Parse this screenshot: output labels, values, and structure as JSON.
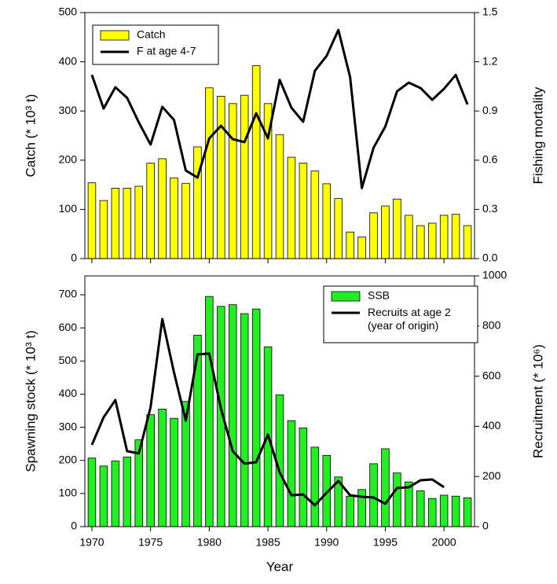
{
  "chart_data": [
    {
      "type": "bar_line",
      "ylabel": "Catch (* 10³ t)",
      "y2label": "Fishing mortality",
      "x": [
        1970,
        1971,
        1972,
        1973,
        1974,
        1975,
        1976,
        1977,
        1978,
        1979,
        1980,
        1981,
        1982,
        1983,
        1984,
        1985,
        1986,
        1987,
        1988,
        1989,
        1990,
        1991,
        1992,
        1993,
        1994,
        1995,
        1996,
        1997,
        1998,
        1999,
        2000,
        2001,
        2002
      ],
      "xlim": [
        1969.4,
        2002.6
      ],
      "ylim": [
        0,
        500
      ],
      "yticks": [
        0,
        100,
        200,
        300,
        400,
        500
      ],
      "y2lim": [
        0,
        1.5
      ],
      "y2ticks": [
        {
          "value": 0,
          "label": "0.0"
        },
        0.3,
        0.6,
        0.9,
        1.2,
        1.5
      ],
      "series": [
        {
          "name": "Catch",
          "kind": "bar",
          "color": "#ffff00",
          "values": [
            154,
            118,
            143,
            143,
            147,
            194,
            203,
            164,
            153,
            227,
            347,
            330,
            315,
            332,
            392,
            315,
            252,
            206,
            194,
            178,
            152,
            122,
            54,
            44,
            93,
            107,
            121,
            88,
            67,
            72,
            88,
            90,
            67
          ]
        },
        {
          "name": "F at age 4-7",
          "kind": "line",
          "axis": "y2",
          "color": "#000000",
          "values": [
            1.12,
            0.915,
            1.045,
            0.98,
            0.83,
            0.695,
            0.925,
            0.845,
            0.537,
            0.494,
            0.733,
            0.81,
            0.728,
            0.71,
            0.886,
            0.733,
            1.09,
            0.92,
            0.834,
            1.145,
            1.236,
            1.394,
            1.107,
            0.43,
            0.676,
            0.805,
            1.02,
            1.073,
            1.04,
            0.968,
            1.035,
            1.12,
            0.94
          ]
        }
      ]
    },
    {
      "type": "bar_line",
      "ylabel": "Spawning stock (* 10³ t)",
      "y2label": "Recruitment (* 10⁶)",
      "xlabel": "Year",
      "x": [
        1970,
        1971,
        1972,
        1973,
        1974,
        1975,
        1976,
        1977,
        1978,
        1979,
        1980,
        1981,
        1982,
        1983,
        1984,
        1985,
        1986,
        1987,
        1988,
        1989,
        1990,
        1991,
        1992,
        1993,
        1994,
        1995,
        1996,
        1997,
        1998,
        1999,
        2000,
        2001,
        2002
      ],
      "xlim": [
        1969.4,
        2002.6
      ],
      "xticks": [
        1970,
        1975,
        1980,
        1985,
        1990,
        1995,
        2000
      ],
      "ylim": [
        0,
        757
      ],
      "yticks": [
        0,
        100,
        200,
        300,
        400,
        500,
        600,
        700
      ],
      "y2lim": [
        0,
        1000
      ],
      "y2ticks": [
        0,
        200,
        400,
        600,
        800,
        1000
      ],
      "series": [
        {
          "name": "SSB",
          "kind": "bar",
          "color": "#22ee22",
          "values": [
            207,
            183,
            198,
            210,
            262,
            338,
            355,
            327,
            378,
            578,
            695,
            665,
            670,
            643,
            657,
            543,
            398,
            320,
            298,
            240,
            215,
            150,
            92,
            112,
            190,
            235,
            162,
            135,
            108,
            85,
            95,
            92,
            87
          ]
        },
        {
          "name": "Recruits at age 2\n(year of origin)",
          "kind": "line",
          "axis": "y2",
          "color": "#000000",
          "values": [
            326,
            436,
            505,
            301,
            292,
            476,
            828,
            614,
            423,
            687,
            690,
            470,
            301,
            251,
            257,
            367,
            216,
            125,
            128,
            85,
            135,
            182,
            125,
            119,
            116,
            91,
            154,
            157,
            185,
            188,
            157,
            null,
            null
          ]
        }
      ]
    }
  ]
}
